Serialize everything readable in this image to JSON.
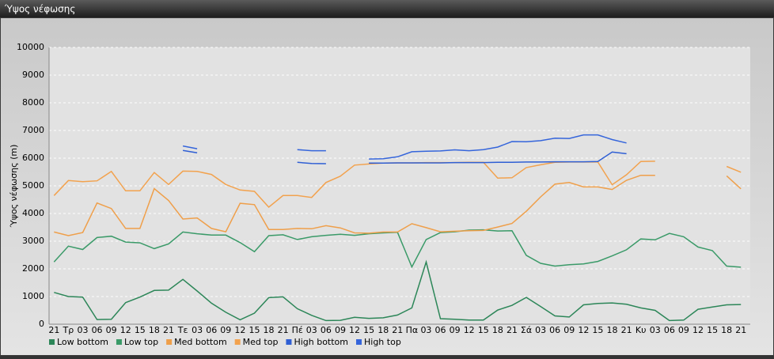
{
  "chart_data": {
    "type": "line",
    "title": "Ύψος νέφωσης",
    "y_label": "Ύψος νέφωσης (m)",
    "categories": [
      "21",
      "Τρ",
      "03",
      "06",
      "09",
      "12",
      "15",
      "18",
      "21",
      "Τε",
      "03",
      "06",
      "09",
      "12",
      "15",
      "18",
      "21",
      "Πέ",
      "03",
      "06",
      "09",
      "12",
      "15",
      "18",
      "21",
      "Πα",
      "03",
      "06",
      "09",
      "12",
      "15",
      "18",
      "21",
      "Σά",
      "03",
      "06",
      "09",
      "12",
      "15",
      "18",
      "21",
      "Κυ",
      "03",
      "06",
      "09",
      "12",
      "15",
      "18",
      "21"
    ],
    "ylim": [
      0,
      10000
    ],
    "yticks": [
      0,
      1000,
      2000,
      3000,
      4000,
      5000,
      6000,
      7000,
      8000,
      9000,
      10000
    ],
    "grid": true,
    "legend": "bottom-left",
    "series": [
      {
        "name": "Low bottom",
        "color": "#2c8658",
        "values": [
          1150,
          1000,
          980,
          170,
          180,
          780,
          980,
          1220,
          1230,
          1620,
          1200,
          760,
          430,
          160,
          400,
          960,
          990,
          560,
          320,
          130,
          140,
          250,
          210,
          230,
          330,
          590,
          2250,
          200,
          180,
          150,
          150,
          510,
          680,
          970,
          640,
          300,
          260,
          700,
          750,
          770,
          720,
          590,
          500,
          130,
          150,
          540,
          620,
          700,
          710
        ]
      },
      {
        "name": "Low top",
        "color": "#3a9a68",
        "values": [
          2250,
          2820,
          2700,
          3130,
          3180,
          2970,
          2940,
          2730,
          2900,
          3330,
          3270,
          3220,
          3220,
          2950,
          2620,
          3200,
          3230,
          3060,
          3160,
          3210,
          3250,
          3210,
          3270,
          3300,
          3320,
          2070,
          3060,
          3310,
          3340,
          3400,
          3410,
          3370,
          3380,
          2490,
          2200,
          2100,
          2150,
          2180,
          2270,
          2470,
          2690,
          3080,
          3050,
          3280,
          3160,
          2790,
          2660,
          2100,
          2060
        ]
      },
      {
        "name": "Med bottom",
        "color": "#ef9f4a",
        "values": [
          3330,
          3200,
          3310,
          4380,
          4180,
          3460,
          3460,
          4900,
          4470,
          3800,
          3840,
          3460,
          3340,
          4370,
          4320,
          3420,
          3420,
          3460,
          3450,
          3560,
          3480,
          3300,
          3290,
          3330,
          3330,
          3630,
          3490,
          3340,
          3360,
          3380,
          3390,
          3510,
          3640,
          4080,
          4600,
          5060,
          5120,
          4960,
          4960,
          4870,
          5200,
          5380,
          5380,
          null,
          null,
          null,
          null,
          5360,
          4890
        ]
      },
      {
        "name": "Med top",
        "color": "#f2a24e",
        "values": [
          4650,
          5190,
          5150,
          5180,
          5520,
          4820,
          4820,
          5480,
          5050,
          5530,
          5520,
          5410,
          5050,
          4850,
          4800,
          4230,
          4650,
          4650,
          4580,
          5120,
          5350,
          5750,
          5790,
          5820,
          5830,
          5830,
          5840,
          5840,
          5840,
          5850,
          5850,
          5280,
          5290,
          5660,
          5760,
          5850,
          5860,
          5860,
          5860,
          5040,
          5400,
          5880,
          5890,
          null,
          null,
          null,
          null,
          5700,
          5490
        ]
      },
      {
        "name": "High bottom",
        "color": "#2f5fd4",
        "values": [
          null,
          null,
          null,
          null,
          null,
          null,
          null,
          null,
          null,
          6280,
          6190,
          null,
          null,
          null,
          null,
          null,
          null,
          5850,
          5810,
          5800,
          null,
          null,
          5820,
          5820,
          5830,
          5830,
          5830,
          5830,
          5840,
          5840,
          5840,
          5850,
          5850,
          5860,
          5860,
          5870,
          5870,
          5870,
          5880,
          6220,
          6160,
          null,
          null,
          null,
          null,
          null,
          null,
          null,
          null
        ]
      },
      {
        "name": "High top",
        "color": "#3565db",
        "values": [
          null,
          null,
          null,
          null,
          null,
          null,
          null,
          null,
          null,
          6440,
          6340,
          null,
          null,
          null,
          null,
          null,
          null,
          6310,
          6270,
          6270,
          null,
          null,
          5970,
          5980,
          6050,
          6230,
          6250,
          6260,
          6300,
          6270,
          6310,
          6400,
          6600,
          6590,
          6630,
          6720,
          6710,
          6840,
          6840,
          6670,
          6550,
          null,
          null,
          null,
          null,
          null,
          null,
          null,
          null
        ]
      }
    ]
  }
}
